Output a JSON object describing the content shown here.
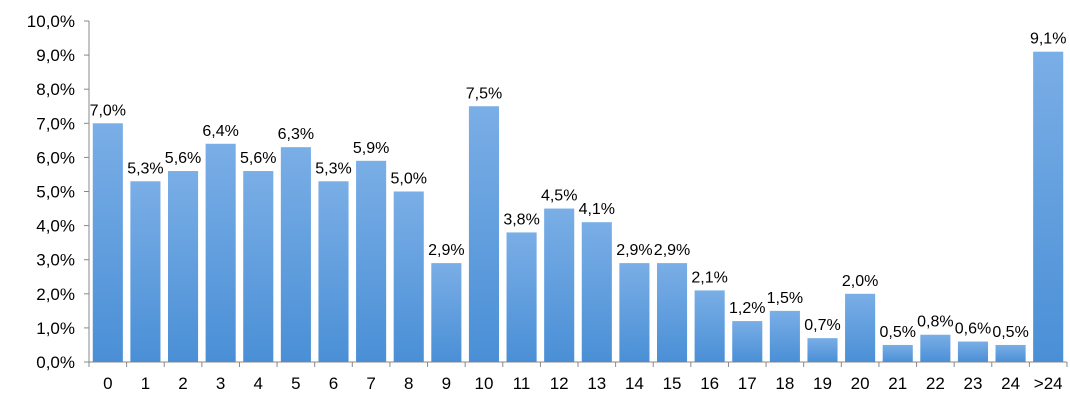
{
  "chart_data": {
    "type": "bar",
    "categories": [
      "0",
      "1",
      "2",
      "3",
      "4",
      "5",
      "6",
      "7",
      "8",
      "9",
      "10",
      "11",
      "12",
      "13",
      "14",
      "15",
      "16",
      "17",
      "18",
      "19",
      "20",
      "21",
      "22",
      "23",
      "24",
      ">24"
    ],
    "values": [
      7.0,
      5.3,
      5.6,
      6.4,
      5.6,
      6.3,
      5.3,
      5.9,
      5.0,
      2.9,
      7.5,
      3.8,
      4.5,
      4.1,
      2.9,
      2.9,
      2.1,
      1.2,
      1.5,
      0.7,
      2.0,
      0.5,
      0.8,
      0.6,
      0.5,
      9.1
    ],
    "value_labels": [
      "7,0%",
      "5,3%",
      "5,6%",
      "6,4%",
      "5,6%",
      "6,3%",
      "5,3%",
      "5,9%",
      "5,0%",
      "2,9%",
      "7,5%",
      "3,8%",
      "4,5%",
      "4,1%",
      "2,9%",
      "2,9%",
      "2,1%",
      "1,2%",
      "1,5%",
      "0,7%",
      "2,0%",
      "0,5%",
      "0,8%",
      "0,6%",
      "0,5%",
      "9,1%"
    ],
    "y_ticks": [
      0,
      1,
      2,
      3,
      4,
      5,
      6,
      7,
      8,
      9,
      10
    ],
    "y_tick_labels": [
      "0,0%",
      "1,0%",
      "2,0%",
      "3,0%",
      "4,0%",
      "5,0%",
      "6,0%",
      "7,0%",
      "8,0%",
      "9,0%",
      "10,0%"
    ],
    "ylim": [
      0,
      10
    ],
    "grid": false,
    "title": "",
    "xlabel": "",
    "ylabel": "",
    "colors": {
      "bar_top": "#7aaee6",
      "bar_bottom": "#4a8fd6",
      "axis": "#888888",
      "text": "#000000"
    }
  }
}
